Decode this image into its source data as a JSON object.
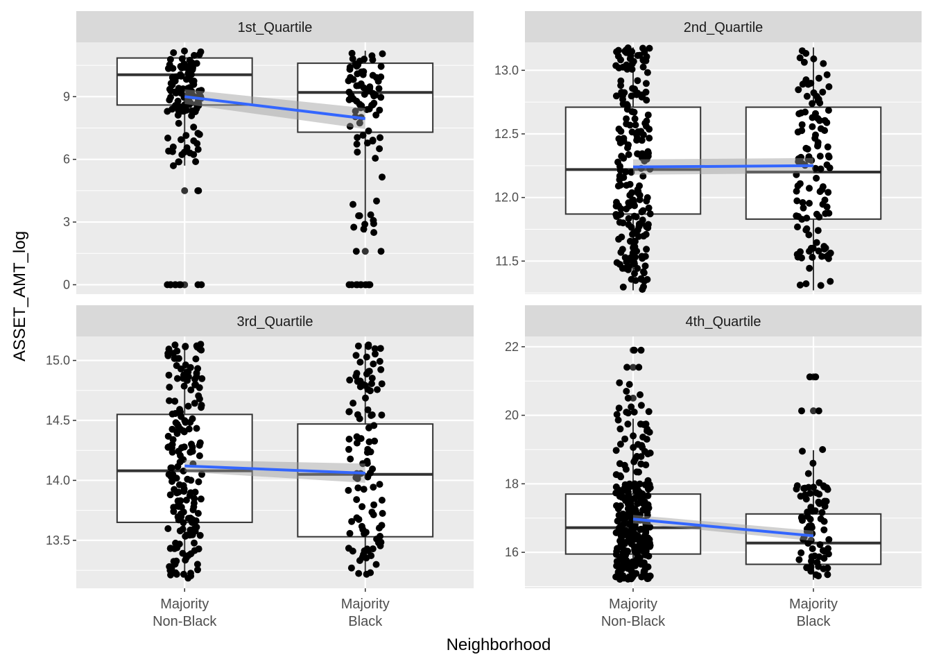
{
  "chart_data": {
    "type": "boxplot",
    "ylabel": "ASSET_AMT_log",
    "xlabel": "Neighborhood",
    "categories": [
      [
        "Majority",
        "Non-Black"
      ],
      [
        "Majority",
        "Black"
      ]
    ],
    "facets": [
      {
        "strip": "1st_Quartile",
        "ylim": [
          -0.45,
          11.6
        ],
        "yticks": [
          0,
          3,
          6,
          9
        ],
        "ytick_labels": [
          "0",
          "3",
          "6",
          "9"
        ],
        "boxes": [
          {
            "q1": 8.6,
            "median": 10.05,
            "q3": 10.85,
            "whisker_low": 5.7,
            "whisker_high": 11.2,
            "outliers": [
              4.5,
              0
            ]
          },
          {
            "q1": 7.3,
            "median": 9.2,
            "q3": 10.6,
            "whisker_low": 2.5,
            "whisker_high": 11.2,
            "outliers": [
              1.6,
              0
            ]
          }
        ],
        "trend": [
          9.0,
          7.95
        ],
        "band": [
          0.35,
          0.5
        ],
        "points": [
          {
            "range": [
              8.2,
              11.2
            ],
            "n": 85,
            "seed": 11
          },
          {
            "range": [
              5.6,
              8.2
            ],
            "n": 24,
            "seed": 12
          },
          {
            "values": [
              0,
              0,
              0,
              0,
              0,
              0,
              0,
              0,
              0,
              0,
              4.5,
              4.5
            ]
          },
          {
            "range": [
              8.0,
              11.2
            ],
            "n": 55,
            "seed": 21
          },
          {
            "range": [
              2.5,
              8.0
            ],
            "n": 22,
            "seed": 22
          },
          {
            "values": [
              0,
              0,
              0,
              0,
              0,
              0,
              0,
              0,
              0,
              0,
              1.6,
              1.6,
              3.3,
              3.3,
              2.5
            ]
          }
        ]
      },
      {
        "strip": "2nd_Quartile",
        "ylim": [
          11.24,
          13.22
        ],
        "yticks": [
          11.5,
          12.0,
          12.5,
          13.0
        ],
        "ytick_labels": [
          "11.5",
          "12.0",
          "12.5",
          "13.0"
        ],
        "boxes": [
          {
            "q1": 11.87,
            "median": 12.22,
            "q3": 12.71,
            "whisker_low": 11.27,
            "whisker_high": 13.18,
            "outliers": []
          },
          {
            "q1": 11.83,
            "median": 12.2,
            "q3": 12.71,
            "whisker_low": 11.27,
            "whisker_high": 13.18,
            "outliers": []
          }
        ],
        "trend": [
          12.24,
          12.25
        ],
        "band": [
          0.06,
          0.06
        ],
        "points": [
          {
            "range": [
              11.27,
              13.18
            ],
            "n": 210,
            "seed": 31
          },
          {
            "range": [
              11.27,
              13.18
            ],
            "n": 115,
            "seed": 32
          }
        ]
      },
      {
        "strip": "3rd_Quartile",
        "ylim": [
          13.1,
          15.2
        ],
        "yticks": [
          13.5,
          14.0,
          14.5,
          15.0
        ],
        "ytick_labels": [
          "13.5",
          "14.0",
          "14.5",
          "15.0"
        ],
        "boxes": [
          {
            "q1": 13.65,
            "median": 14.08,
            "q3": 14.55,
            "whisker_low": 13.2,
            "whisker_high": 15.14,
            "outliers": []
          },
          {
            "q1": 13.53,
            "median": 14.05,
            "q3": 14.47,
            "whisker_low": 13.2,
            "whisker_high": 15.14,
            "outliers": []
          }
        ],
        "trend": [
          14.12,
          14.06
        ],
        "band": [
          0.05,
          0.08
        ],
        "points": [
          {
            "range": [
              13.18,
              15.14
            ],
            "n": 185,
            "seed": 41
          },
          {
            "range": [
              13.18,
              15.14
            ],
            "n": 105,
            "seed": 42
          }
        ]
      },
      {
        "strip": "4th_Quartile",
        "ylim": [
          14.95,
          22.3
        ],
        "yticks": [
          16,
          18,
          20,
          22
        ],
        "ytick_labels": [
          "16",
          "18",
          "20",
          "22"
        ],
        "boxes": [
          {
            "q1": 15.95,
            "median": 16.72,
            "q3": 17.7,
            "whisker_low": 15.2,
            "whisker_high": 19.9,
            "outliers": [
              20.5,
              21.4,
              21.9
            ]
          },
          {
            "q1": 15.65,
            "median": 16.27,
            "q3": 17.12,
            "whisker_low": 15.2,
            "whisker_high": 18.98,
            "outliers": [
              20.13,
              21.12
            ]
          }
        ],
        "trend": [
          16.97,
          16.48
        ],
        "band": [
          0.12,
          0.15
        ],
        "points": [
          {
            "range": [
              15.2,
              18.0
            ],
            "n": 230,
            "seed": 51
          },
          {
            "range": [
              18.0,
              20.3
            ],
            "n": 45,
            "seed": 52
          },
          {
            "values": [
              20.5,
              20.7,
              20.9,
              20.95,
              21.4,
              21.4,
              21.9,
              21.9,
              20.6
            ]
          },
          {
            "range": [
              15.2,
              18.1
            ],
            "n": 70,
            "seed": 61
          },
          {
            "values": [
              18.3,
              18.6,
              19.0,
              18.95,
              20.13,
              20.13,
              21.12,
              21.12
            ]
          }
        ]
      }
    ]
  }
}
